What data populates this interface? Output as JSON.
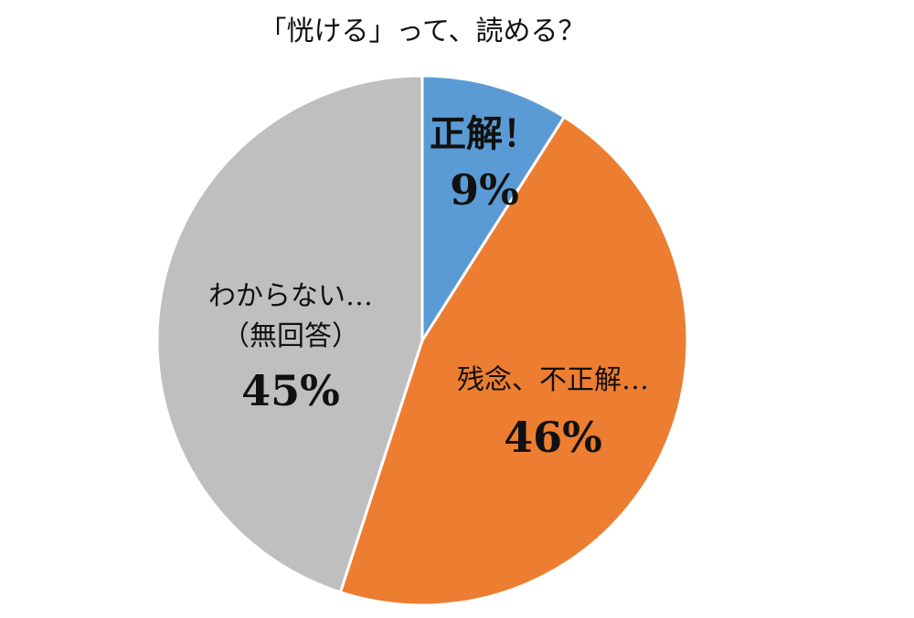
{
  "chart_data": {
    "type": "pie",
    "title": "「恍ける」って、読める？",
    "categories": [
      [
        "正解！"
      ],
      [
        "残念、不正解…"
      ],
      [
        "わからない…",
        "（無回答）"
      ]
    ],
    "values": [
      9,
      46,
      45
    ],
    "value_labels": [
      "9%",
      "46%",
      "45%"
    ],
    "colors": [
      "#5b9bd5",
      "#ed7d31",
      "#bfbfbf"
    ]
  }
}
